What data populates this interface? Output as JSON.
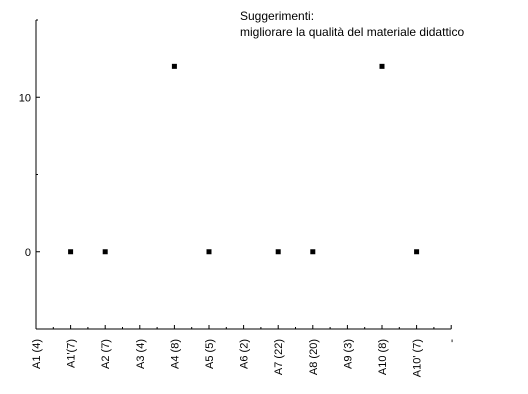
{
  "chart_data": {
    "type": "scatter",
    "title_lines": [
      "Suggerimenti:",
      "migliorare la qualità del materiale didattico"
    ],
    "xlabel": "",
    "ylabel": "",
    "categories": [
      "A1 (4)",
      "A1'(7)",
      "A2 (7)",
      "A3 (4)",
      "A4 (8)",
      "A5 (5)",
      "A6 (2)",
      "A7 (22)",
      "A8 (20)",
      "A9 (3)",
      "A10 (8)",
      "A10' (7)",
      "-"
    ],
    "points": [
      {
        "category": "A1'(7)",
        "value": 0
      },
      {
        "category": "A2 (7)",
        "value": 0
      },
      {
        "category": "A4 (8)",
        "value": 12
      },
      {
        "category": "A5 (5)",
        "value": 0
      },
      {
        "category": "A7 (22)",
        "value": 0
      },
      {
        "category": "A8 (20)",
        "value": 0
      },
      {
        "category": "A10 (8)",
        "value": 12
      },
      {
        "category": "A10' (7)",
        "value": 0
      }
    ],
    "ylim": [
      -5,
      15
    ],
    "y_major_ticks": [
      0,
      10
    ],
    "y_tick_labels": [
      "0",
      "10"
    ],
    "y_minor_ticks": [
      -5,
      5,
      15
    ],
    "grid": false,
    "marker": "square",
    "marker_color": "#000000"
  }
}
